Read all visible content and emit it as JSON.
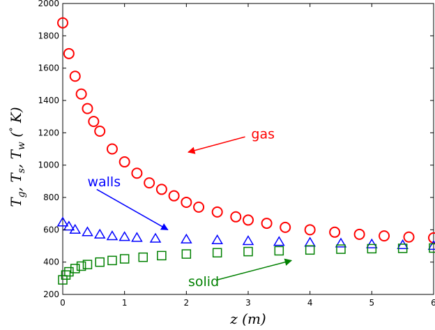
{
  "chart_data": {
    "type": "scatter",
    "title": "",
    "xlabel": "z (m)",
    "ylabel": "T_g, T_s, T_w (° K)",
    "xlim": [
      0,
      6
    ],
    "ylim": [
      200,
      2000
    ],
    "xticks": [
      "0",
      "1",
      "2",
      "3",
      "4",
      "5",
      "6"
    ],
    "yticks": [
      "200",
      "400",
      "600",
      "800",
      "1000",
      "1200",
      "1400",
      "1600",
      "1800",
      "2000"
    ],
    "grid": false,
    "series": [
      {
        "name": "gas",
        "marker": "circle",
        "color": "#ff0000",
        "x": [
          0.0,
          0.1,
          0.2,
          0.3,
          0.4,
          0.5,
          0.6,
          0.8,
          1.0,
          1.2,
          1.4,
          1.6,
          1.8,
          2.0,
          2.2,
          2.5,
          2.8,
          3.0,
          3.3,
          3.6,
          4.0,
          4.4,
          4.8,
          5.2,
          5.6,
          6.0
        ],
        "y": [
          1880,
          1690,
          1550,
          1440,
          1350,
          1270,
          1210,
          1100,
          1020,
          950,
          890,
          850,
          810,
          770,
          740,
          710,
          680,
          660,
          640,
          615,
          600,
          585,
          572,
          562,
          555,
          550
        ]
      },
      {
        "name": "walls",
        "marker": "triangle",
        "color": "#0000ff",
        "x": [
          0.0,
          0.1,
          0.2,
          0.4,
          0.6,
          0.8,
          1.0,
          1.2,
          1.5,
          2.0,
          2.5,
          3.0,
          3.5,
          4.0,
          4.5,
          5.0,
          5.5,
          6.0
        ],
        "y": [
          645,
          620,
          600,
          585,
          570,
          560,
          555,
          550,
          545,
          540,
          535,
          530,
          525,
          520,
          515,
          510,
          505,
          500
        ]
      },
      {
        "name": "solid",
        "marker": "square",
        "color": "#008000",
        "x": [
          0.0,
          0.05,
          0.1,
          0.2,
          0.3,
          0.4,
          0.6,
          0.8,
          1.0,
          1.3,
          1.6,
          2.0,
          2.5,
          3.0,
          3.5,
          4.0,
          4.5,
          5.0,
          5.5,
          6.0
        ],
        "y": [
          290,
          320,
          340,
          360,
          375,
          385,
          400,
          410,
          420,
          430,
          440,
          450,
          458,
          465,
          470,
          475,
          480,
          483,
          485,
          487
        ]
      }
    ],
    "annotations": [
      {
        "text": "gas",
        "color": "#ff0000",
        "text_at": [
          3.05,
          1190
        ],
        "arrow_from": [
          2.95,
          1175
        ],
        "arrow_to": [
          2.03,
          1080
        ]
      },
      {
        "text": "walls",
        "color": "#0000ff",
        "text_at": [
          0.4,
          895
        ],
        "arrow_from": [
          0.55,
          850
        ],
        "arrow_to": [
          1.7,
          600
        ]
      },
      {
        "text": "solid",
        "color": "#008000",
        "text_at": [
          2.03,
          278
        ],
        "arrow_from": [
          2.5,
          290
        ],
        "arrow_to": [
          3.7,
          410
        ]
      }
    ]
  }
}
